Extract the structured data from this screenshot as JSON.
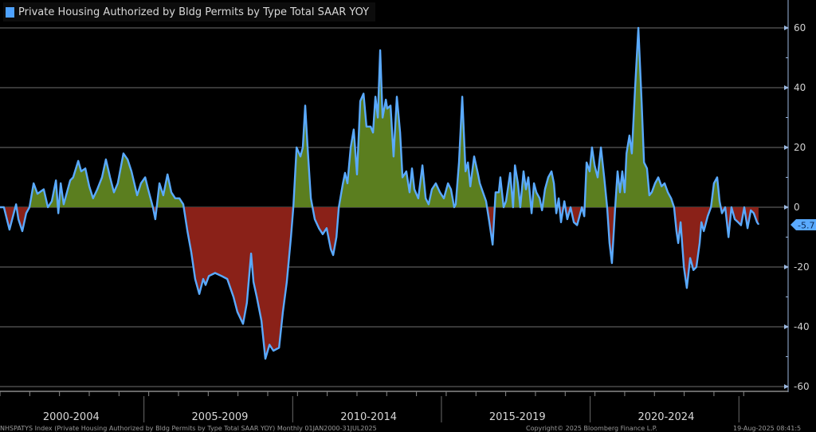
{
  "legend": {
    "label": "Private Housing Authorized by Bldg Permits by Type Total SAAR YOY",
    "color": "#4ea2ff"
  },
  "footer": {
    "source": "NHSPATYS Index (Private Housing Authorized by Bldg Permits by Type Total SAAR YOY)  Monthly 01JAN2000-31JUL2025",
    "copyright": "Copyright© 2025 Bloomberg Finance L.P.",
    "timestamp": "19-Aug-2025 08:41:5"
  },
  "colors": {
    "line": "#5aaaff",
    "positive_fill": "#5b7e1f",
    "negative_fill": "#8a2118",
    "grid": "#5a5a5a",
    "badge": "#5aaaff"
  },
  "chart_data": {
    "type": "area",
    "title": "Private Housing Authorized by Bldg Permits by Type Total SAAR YOY",
    "xlabel": "",
    "ylabel": "",
    "xlim": [
      2000,
      2025.6
    ],
    "ylim": [
      -60,
      65
    ],
    "yticks": [
      60,
      40,
      20,
      0,
      -20,
      -40,
      -60
    ],
    "ytick_labels": [
      "60",
      "40",
      "20",
      "0",
      "-20",
      "-40",
      "-60"
    ],
    "period_labels": [
      "2000-2004",
      "2005-2009",
      "2010-2014",
      "2015-2019",
      "2020-2024"
    ],
    "period_starts": [
      2000,
      2005,
      2010,
      2015,
      2020,
      2025
    ],
    "grid": true,
    "legend_position": "top-left",
    "last_value_label": "-5.7",
    "last_value": -5.7,
    "points": [
      [
        2000.0,
        0
      ],
      [
        2000.13,
        0
      ],
      [
        2000.32,
        -7.5
      ],
      [
        2000.54,
        1
      ],
      [
        2000.62,
        -4
      ],
      [
        2000.75,
        -8
      ],
      [
        2000.88,
        -2
      ],
      [
        2000.99,
        0
      ],
      [
        2001.13,
        8
      ],
      [
        2001.26,
        4.5
      ],
      [
        2001.47,
        6
      ],
      [
        2001.61,
        0
      ],
      [
        2001.74,
        2
      ],
      [
        2001.88,
        9
      ],
      [
        2001.96,
        -2
      ],
      [
        2002.04,
        8
      ],
      [
        2002.14,
        1
      ],
      [
        2002.36,
        9
      ],
      [
        2002.46,
        10
      ],
      [
        2002.63,
        15.5
      ],
      [
        2002.73,
        12
      ],
      [
        2002.87,
        13
      ],
      [
        2003.0,
        7
      ],
      [
        2003.13,
        3
      ],
      [
        2003.27,
        6
      ],
      [
        2003.43,
        10
      ],
      [
        2003.56,
        16
      ],
      [
        2003.7,
        10
      ],
      [
        2003.83,
        5
      ],
      [
        2003.96,
        8
      ],
      [
        2004.15,
        18
      ],
      [
        2004.29,
        16
      ],
      [
        2004.42,
        12
      ],
      [
        2004.61,
        4
      ],
      [
        2004.74,
        8
      ],
      [
        2004.88,
        10
      ],
      [
        2004.98,
        6
      ],
      [
        2005.14,
        0
      ],
      [
        2005.22,
        -4
      ],
      [
        2005.36,
        8
      ],
      [
        2005.49,
        4
      ],
      [
        2005.63,
        11
      ],
      [
        2005.76,
        5
      ],
      [
        2005.89,
        3
      ],
      [
        2006.03,
        3
      ],
      [
        2006.16,
        1
      ],
      [
        2006.3,
        -8
      ],
      [
        2006.43,
        -15
      ],
      [
        2006.56,
        -24
      ],
      [
        2006.7,
        -29
      ],
      [
        2006.83,
        -24
      ],
      [
        2006.91,
        -26
      ],
      [
        2007.02,
        -23
      ],
      [
        2007.23,
        -22
      ],
      [
        2007.45,
        -23
      ],
      [
        2007.64,
        -24
      ],
      [
        2007.85,
        -30
      ],
      [
        2007.98,
        -35
      ],
      [
        2008.17,
        -39
      ],
      [
        2008.3,
        -32
      ],
      [
        2008.44,
        -15.5
      ],
      [
        2008.52,
        -25
      ],
      [
        2008.63,
        -30
      ],
      [
        2008.79,
        -38
      ],
      [
        2008.92,
        -50.7
      ],
      [
        2009.06,
        -46
      ],
      [
        2009.19,
        -48
      ],
      [
        2009.38,
        -47
      ],
      [
        2009.51,
        -35
      ],
      [
        2009.64,
        -25
      ],
      [
        2009.78,
        -10
      ],
      [
        2009.86,
        0
      ],
      [
        2009.97,
        20
      ],
      [
        2010.1,
        17
      ],
      [
        2010.18,
        20
      ],
      [
        2010.26,
        34
      ],
      [
        2010.34,
        20
      ],
      [
        2010.45,
        3
      ],
      [
        2010.58,
        -4
      ],
      [
        2010.72,
        -7
      ],
      [
        2010.85,
        -9
      ],
      [
        2010.98,
        -7
      ],
      [
        2011.12,
        -14
      ],
      [
        2011.2,
        -16
      ],
      [
        2011.31,
        -10
      ],
      [
        2011.39,
        0
      ],
      [
        2011.52,
        7.5
      ],
      [
        2011.6,
        11.5
      ],
      [
        2011.68,
        8
      ],
      [
        2011.79,
        20
      ],
      [
        2011.89,
        26
      ],
      [
        2012.0,
        11
      ],
      [
        2012.11,
        35.5
      ],
      [
        2012.22,
        38
      ],
      [
        2012.32,
        27
      ],
      [
        2012.46,
        27
      ],
      [
        2012.54,
        25
      ],
      [
        2012.62,
        37
      ],
      [
        2012.7,
        30
      ],
      [
        2012.78,
        52.5
      ],
      [
        2012.86,
        30
      ],
      [
        2012.97,
        36
      ],
      [
        2013.02,
        33
      ],
      [
        2013.13,
        34
      ],
      [
        2013.23,
        17
      ],
      [
        2013.34,
        37
      ],
      [
        2013.45,
        25
      ],
      [
        2013.53,
        10
      ],
      [
        2013.66,
        12
      ],
      [
        2013.77,
        5
      ],
      [
        2013.85,
        13
      ],
      [
        2013.93,
        6
      ],
      [
        2014.06,
        3
      ],
      [
        2014.2,
        14
      ],
      [
        2014.31,
        3
      ],
      [
        2014.41,
        1
      ],
      [
        2014.52,
        6
      ],
      [
        2014.65,
        8
      ],
      [
        2014.79,
        5
      ],
      [
        2014.92,
        3
      ],
      [
        2015.06,
        8
      ],
      [
        2015.16,
        6
      ],
      [
        2015.27,
        0
      ],
      [
        2015.32,
        1
      ],
      [
        2015.43,
        15
      ],
      [
        2015.54,
        37
      ],
      [
        2015.65,
        12
      ],
      [
        2015.73,
        15
      ],
      [
        2015.81,
        7
      ],
      [
        2015.94,
        17
      ],
      [
        2016.07,
        11
      ],
      [
        2016.13,
        8
      ],
      [
        2016.34,
        2
      ],
      [
        2016.45,
        -5
      ],
      [
        2016.56,
        -12.5
      ],
      [
        2016.66,
        5
      ],
      [
        2016.77,
        5
      ],
      [
        2016.82,
        10
      ],
      [
        2016.93,
        0
      ],
      [
        2017.01,
        2
      ],
      [
        2017.15,
        11.5
      ],
      [
        2017.25,
        0
      ],
      [
        2017.31,
        14
      ],
      [
        2017.41,
        8
      ],
      [
        2017.49,
        0
      ],
      [
        2017.6,
        12
      ],
      [
        2017.68,
        6
      ],
      [
        2017.76,
        10
      ],
      [
        2017.87,
        -2
      ],
      [
        2017.95,
        8
      ],
      [
        2018.03,
        5
      ],
      [
        2018.14,
        3
      ],
      [
        2018.22,
        -1
      ],
      [
        2018.32,
        6
      ],
      [
        2018.43,
        10
      ],
      [
        2018.54,
        12
      ],
      [
        2018.62,
        8
      ],
      [
        2018.7,
        -2
      ],
      [
        2018.78,
        3
      ],
      [
        2018.86,
        -5
      ],
      [
        2018.97,
        2
      ],
      [
        2019.07,
        -4
      ],
      [
        2019.18,
        0
      ],
      [
        2019.29,
        -5
      ],
      [
        2019.4,
        -6
      ],
      [
        2019.48,
        -3
      ],
      [
        2019.56,
        0
      ],
      [
        2019.64,
        -3
      ],
      [
        2019.72,
        15
      ],
      [
        2019.82,
        12
      ],
      [
        2019.9,
        20
      ],
      [
        2019.99,
        14
      ],
      [
        2020.09,
        10
      ],
      [
        2020.2,
        20
      ],
      [
        2020.31,
        10
      ],
      [
        2020.41,
        0
      ],
      [
        2020.49,
        -12
      ],
      [
        2020.57,
        -18.7
      ],
      [
        2020.68,
        0
      ],
      [
        2020.76,
        12
      ],
      [
        2020.84,
        5
      ],
      [
        2020.92,
        12
      ],
      [
        2021.0,
        5
      ],
      [
        2021.06,
        18
      ],
      [
        2021.16,
        24
      ],
      [
        2021.24,
        18
      ],
      [
        2021.35,
        40
      ],
      [
        2021.46,
        60
      ],
      [
        2021.57,
        35
      ],
      [
        2021.65,
        15
      ],
      [
        2021.75,
        13
      ],
      [
        2021.83,
        4
      ],
      [
        2021.91,
        5
      ],
      [
        2022.02,
        8
      ],
      [
        2022.13,
        10
      ],
      [
        2022.24,
        7
      ],
      [
        2022.34,
        8
      ],
      [
        2022.45,
        5
      ],
      [
        2022.56,
        3
      ],
      [
        2022.66,
        0
      ],
      [
        2022.74,
        -8
      ],
      [
        2022.8,
        -12
      ],
      [
        2022.88,
        -5
      ],
      [
        2022.99,
        -20
      ],
      [
        2023.09,
        -27
      ],
      [
        2023.2,
        -17
      ],
      [
        2023.31,
        -21
      ],
      [
        2023.41,
        -20
      ],
      [
        2023.52,
        -12
      ],
      [
        2023.58,
        -5
      ],
      [
        2023.66,
        -8
      ],
      [
        2023.79,
        -3
      ],
      [
        2023.9,
        0
      ],
      [
        2024.0,
        8
      ],
      [
        2024.11,
        10
      ],
      [
        2024.19,
        2
      ],
      [
        2024.27,
        -2
      ],
      [
        2024.38,
        0
      ],
      [
        2024.49,
        -10
      ],
      [
        2024.59,
        0
      ],
      [
        2024.7,
        -4
      ],
      [
        2024.81,
        -5
      ],
      [
        2024.91,
        -6
      ],
      [
        2025.02,
        0
      ],
      [
        2025.13,
        -7
      ],
      [
        2025.24,
        -1
      ],
      [
        2025.34,
        -2
      ],
      [
        2025.45,
        -5
      ],
      [
        2025.5,
        -5.7
      ]
    ]
  }
}
